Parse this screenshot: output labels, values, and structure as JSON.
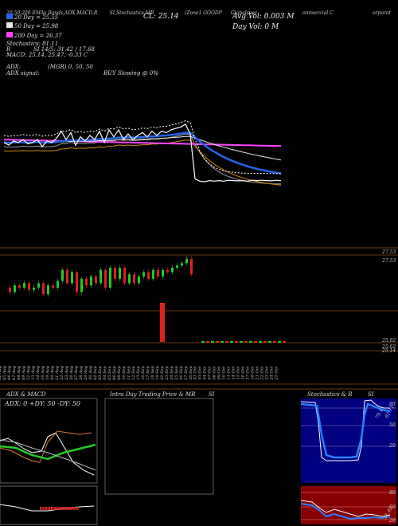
{
  "header": {
    "segments": [
      "20,50,200 EMAs",
      "Bands,ADX,MACD,R",
      "SI,Stochastics,MR",
      "(Zone1 GOODP",
      "Globalsvoc",
      "ommercial C",
      "orporat"
    ],
    "close_label": "CL: 25.14",
    "avg_vol": "Avg Vol: 0.003 M",
    "day_vol": "Day Vol: 0   M"
  },
  "legend": {
    "ema20": "20 Day = 25.55",
    "ema50": "50 Day = 25.98",
    "ema200": "200 Day = 26.37",
    "stochastics": "Stochastics: 81.11",
    "r": "R",
    "rsi": "SI 14/5: 31.42 / 17.68",
    "macd": "MACD: 25.14, 25.47, -0.33 C",
    "adx": "ADX:",
    "adx_mid": "(MGR) 0,  50,  50",
    "adx_signal": "ADX  signal:",
    "buy": "BUY Slowing @ 0%"
  },
  "colors": {
    "ema20": "#2563eb",
    "ema50": "#e8e8e8",
    "ema200": "#ff44ff",
    "close": "#ffffff",
    "up": "#22cc22",
    "down": "#dd2222",
    "sep": "#8a4a18",
    "stoch_bg": "#000080",
    "rsi_bg": "#880000"
  },
  "chart_data": {
    "type": "line",
    "x_labels": [
      "02 Aug",
      "05 Aug",
      "06 Aug",
      "07 Aug",
      "08 Aug",
      "09 Aug",
      "12 Aug",
      "13 Aug",
      "14 Aug",
      "16 Aug",
      "19 Aug",
      "20 Aug",
      "21 Aug",
      "22 Aug",
      "23 Aug",
      "26 Aug",
      "27 Aug",
      "28 Aug",
      "29 Aug",
      "30 Aug",
      "02 Sep",
      "03 Sep",
      "04 Sep",
      "05 Sep",
      "06 Sep",
      "09 Sep",
      "10 Sep",
      "11 Sep",
      "12 Sep",
      "13 Sep",
      "16 Sep",
      "17 Sep",
      "18 Sep",
      "19 Sep",
      "20 Sep",
      "23 Sep",
      "24 Sep",
      "25 Sep",
      "26 Sep",
      "27 Sep",
      "30 Sep",
      "01 Oct",
      "03 Oct",
      "04 Oct",
      "07 Oct",
      "08 Oct",
      "09 Oct",
      "10 Oct",
      "11 Oct",
      "14 Oct",
      "15 Oct",
      "16 Oct",
      "17 Oct",
      "18 Oct",
      "21 Oct",
      "22 Oct",
      "23 Oct",
      "24 Oct",
      "25 Oct"
    ],
    "close": [
      26.5,
      26.4,
      26.55,
      26.5,
      26.6,
      26.45,
      26.5,
      26.6,
      26.35,
      26.55,
      26.5,
      26.65,
      26.9,
      26.6,
      26.85,
      26.4,
      26.7,
      26.55,
      26.75,
      26.6,
      26.9,
      26.5,
      26.95,
      26.7,
      26.95,
      26.6,
      26.8,
      26.6,
      26.75,
      26.85,
      26.7,
      26.9,
      26.75,
      26.9,
      26.85,
      26.95,
      27.0,
      27.05,
      27.15,
      26.8,
      25.2,
      25.12,
      25.1,
      25.14,
      25.12,
      25.14,
      25.12,
      25.15,
      25.14,
      25.13,
      25.14,
      25.12,
      25.15,
      25.14,
      25.15,
      25.14,
      25.13,
      25.15,
      25.14
    ],
    "price_ticks": [
      "27.53",
      "25.14"
    ],
    "volume_ticks": [
      "25.02",
      "25.02"
    ],
    "panels": {
      "adx_macd_title": "ADX  & MACD",
      "adx_values": "ADX: 0   +DY: 50  -DY: 50",
      "intraday_title": "Intra  Day Trading Price  & MR",
      "intraday_si": "SI",
      "stoch_title": "Stochastics & R",
      "stoch_si": "SI",
      "stoch_ticks": [
        "80",
        "50",
        "20"
      ],
      "stoch_values": [
        "81.11",
        "79.1"
      ],
      "rsi_ticks": [
        "80",
        "50",
        "20"
      ],
      "rsi_values": [
        "31.42"
      ]
    }
  }
}
